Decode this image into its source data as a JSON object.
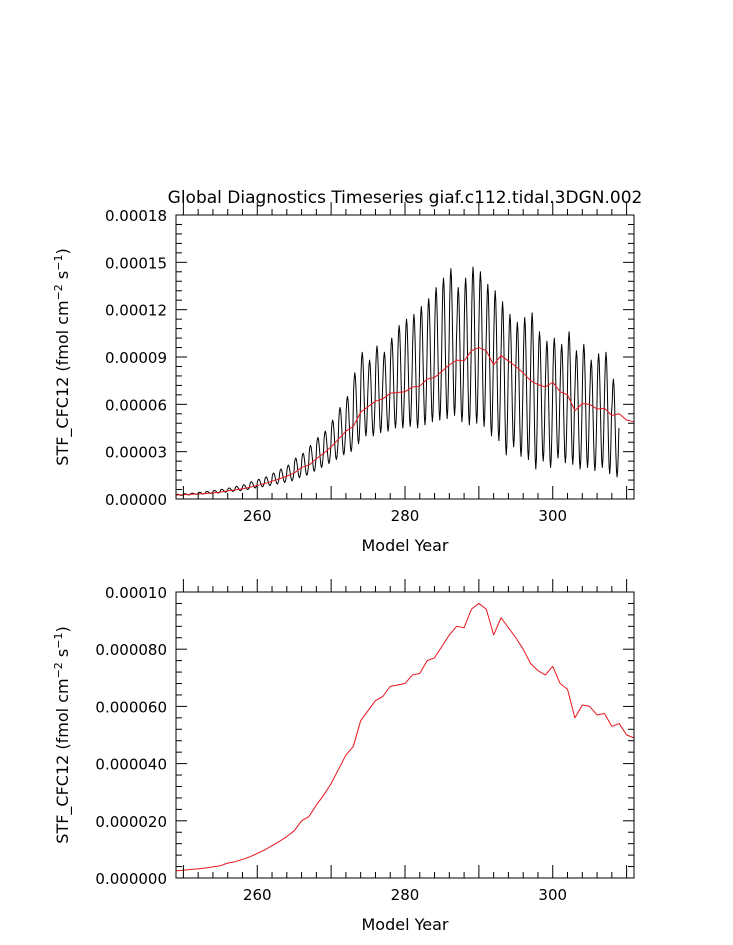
{
  "title": "Global Diagnostics Timeseries giaf.c112.tidal.3DGN.002",
  "colors": {
    "monthly": "#000000",
    "annual": "#e8141c",
    "axis": "#000000"
  },
  "chart_data": [
    {
      "type": "line",
      "xlabel": "Model Year",
      "ylabel_main": "STF_CFC12 (fmol cm",
      "ylabel_sup1": "−2",
      "ylabel_mid": " s",
      "ylabel_sup2": "−1",
      "ylabel_end": ")",
      "xlim": [
        249,
        311
      ],
      "ylim": [
        0,
        0.00018
      ],
      "xticks": [
        260,
        280,
        300
      ],
      "xtick_labels": [
        "260",
        "280",
        "300"
      ],
      "yticks": [
        0,
        3e-05,
        6e-05,
        9e-05,
        0.00012,
        0.00015,
        0.00018
      ],
      "ytick_labels": [
        "0.00000",
        "0.00003",
        "0.00006",
        "0.00009",
        "0.00012",
        "0.00015",
        "0.00018"
      ],
      "series": [
        {
          "name": "monthly",
          "color": "#000000",
          "seasonal_cycle": true,
          "mean": [
            2.6e-06,
            2.9e-06,
            3.3e-06,
            3.6e-06,
            4e-06,
            4.5e-06,
            5.2e-06,
            5.6e-06,
            6.3e-06,
            7e-06,
            8.5e-06,
            9.5e-06,
            1.07e-05,
            1.22e-05,
            1.36e-05,
            1.55e-05,
            1.85e-05,
            2.05e-05,
            2.4e-05,
            2.7e-05,
            3.1e-05,
            3.5e-05,
            4.1e-05,
            4.5e-05,
            5.4e-05,
            5.9e-05,
            6.1e-05,
            6.4e-05,
            6.7e-05,
            6.8e-05,
            7e-05,
            7.3e-05,
            7.5e-05,
            7.8e-05,
            8.2e-05,
            8.8e-05,
            9.3e-05,
            9.5e-05,
            9.2e-05,
            8.6e-05,
            9.1e-05,
            8.8e-05,
            8.4e-05,
            8e-05,
            7.6e-05,
            7.2e-05,
            7e-05,
            6.9e-05,
            7.3e-05,
            6.8e-05,
            6.5e-05,
            5.7e-05,
            6e-05,
            6e-05,
            5.7e-05,
            5.6e-05,
            5.3e-05,
            5.4e-05,
            5.1e-05,
            4.9e-05
          ],
          "peaks": [
            3e-06,
            3.3e-06,
            3.7e-06,
            4.2e-06,
            4.8e-06,
            5.4e-06,
            6.2e-06,
            7e-06,
            8e-06,
            9e-06,
            1.1e-05,
            1.25e-05,
            1.4e-05,
            1.65e-05,
            1.9e-05,
            2.15e-05,
            2.6e-05,
            2.9e-05,
            3.4e-05,
            3.9e-05,
            4.3e-05,
            5e-05,
            5.8e-05,
            6.5e-05,
            8e-05,
            9.3e-05,
            8.8e-05,
            9.7e-05,
            9.3e-05,
            0.000102,
            0.00011,
            0.000114,
            0.000117,
            0.000122,
            0.000127,
            0.000134,
            0.00014,
            0.000146,
            0.000134,
            0.00014,
            0.000147,
            0.000144,
            0.000136,
            0.000132,
            0.000125,
            0.000117,
            0.000112,
            0.000115,
            0.000118,
            0.000106,
            0.0001,
            0.000102,
            9.8e-05,
            0.000106,
            9.4e-05,
            9.8e-05,
            8.8e-05,
            9.2e-05,
            9.3e-05,
            7.6e-05
          ],
          "troughs": [
            2.3e-06,
            2.6e-06,
            3e-06,
            3.2e-06,
            3.5e-06,
            3.8e-06,
            4.3e-06,
            4.8e-06,
            5.3e-06,
            6e-06,
            7e-06,
            7.8e-06,
            8.5e-06,
            9.5e-06,
            1.05e-05,
            1.15e-05,
            1.35e-05,
            1.5e-05,
            1.75e-05,
            2e-05,
            2.25e-05,
            2.5e-05,
            2.8e-05,
            3e-05,
            3.5e-05,
            4e-05,
            4e-05,
            4.2e-05,
            4.3e-05,
            4.5e-05,
            4.5e-05,
            4.6e-05,
            4.5e-05,
            4.7e-05,
            4.9e-05,
            5e-05,
            5.1e-05,
            5.3e-05,
            4.9e-05,
            4.7e-05,
            4.8e-05,
            4.6e-05,
            4e-05,
            3.7e-05,
            2.8e-05,
            3.3e-05,
            2.7e-05,
            2.5e-05,
            1.9e-05,
            2.4e-05,
            2e-05,
            2.6e-05,
            2.3e-05,
            2.2e-05,
            1.9e-05,
            2e-05,
            1.8e-05,
            2e-05,
            1.6e-05,
            1.4e-05
          ]
        },
        {
          "name": "annual",
          "color": "#e8141c",
          "x": [
            249,
            250,
            251,
            252,
            253,
            254,
            255,
            256,
            257,
            258,
            259,
            260,
            261,
            262,
            263,
            264,
            265,
            266,
            267,
            268,
            269,
            270,
            271,
            272,
            273,
            274,
            275,
            276,
            277,
            278,
            279,
            280,
            281,
            282,
            283,
            284,
            285,
            286,
            287,
            288,
            289,
            290,
            291,
            292,
            293,
            294,
            295,
            296,
            297,
            298,
            299,
            300,
            301,
            302,
            303,
            304,
            305,
            306,
            307,
            308,
            309,
            310,
            311
          ],
          "values": [
            2.5e-06,
            2.7e-06,
            3e-06,
            3.2e-06,
            3.5e-06,
            3.9e-06,
            4.3e-06,
            5.2e-06,
            5.7e-06,
            6.5e-06,
            7.4e-06,
            8.6e-06,
            9.8e-06,
            1.13e-05,
            1.28e-05,
            1.45e-05,
            1.65e-05,
            2e-05,
            2.15e-05,
            2.55e-05,
            2.9e-05,
            3.3e-05,
            3.8e-05,
            4.3e-05,
            4.6e-05,
            5.5e-05,
            5.85e-05,
            6.2e-05,
            6.35e-05,
            6.7e-05,
            6.75e-05,
            6.8e-05,
            7.1e-05,
            7.15e-05,
            7.6e-05,
            7.7e-05,
            8.1e-05,
            8.5e-05,
            8.8e-05,
            8.75e-05,
            9.4e-05,
            9.6e-05,
            9.4e-05,
            8.5e-05,
            9.1e-05,
            8.75e-05,
            8.4e-05,
            8e-05,
            7.5e-05,
            7.25e-05,
            7.1e-05,
            7.4e-05,
            6.8e-05,
            6.6e-05,
            5.6e-05,
            6.05e-05,
            6e-05,
            5.7e-05,
            5.75e-05,
            5.3e-05,
            5.4e-05,
            5e-05,
            4.9e-05
          ]
        }
      ]
    },
    {
      "type": "line",
      "xlabel": "Model Year",
      "ylabel_main": "STF_CFC12 (fmol cm",
      "ylabel_sup1": "−2",
      "ylabel_mid": " s",
      "ylabel_sup2": "−1",
      "ylabel_end": ")",
      "xlim": [
        249,
        311
      ],
      "ylim": [
        0,
        0.0001
      ],
      "xticks": [
        260,
        280,
        300
      ],
      "xtick_labels": [
        "260",
        "280",
        "300"
      ],
      "yticks": [
        0,
        2e-05,
        4e-05,
        6e-05,
        8e-05,
        0.0001
      ],
      "ytick_labels": [
        "0.000000",
        "0.000020",
        "0.000040",
        "0.000060",
        "0.000080",
        "0.00010"
      ],
      "series": [
        {
          "name": "annual",
          "color": "#e8141c",
          "x": [
            249,
            250,
            251,
            252,
            253,
            254,
            255,
            256,
            257,
            258,
            259,
            260,
            261,
            262,
            263,
            264,
            265,
            266,
            267,
            268,
            269,
            270,
            271,
            272,
            273,
            274,
            275,
            276,
            277,
            278,
            279,
            280,
            281,
            282,
            283,
            284,
            285,
            286,
            287,
            288,
            289,
            290,
            291,
            292,
            293,
            294,
            295,
            296,
            297,
            298,
            299,
            300,
            301,
            302,
            303,
            304,
            305,
            306,
            307,
            308,
            309,
            310,
            311
          ],
          "values": [
            2.5e-06,
            2.7e-06,
            3e-06,
            3.2e-06,
            3.5e-06,
            3.9e-06,
            4.3e-06,
            5.2e-06,
            5.7e-06,
            6.5e-06,
            7.4e-06,
            8.6e-06,
            9.8e-06,
            1.13e-05,
            1.28e-05,
            1.45e-05,
            1.65e-05,
            2e-05,
            2.15e-05,
            2.55e-05,
            2.9e-05,
            3.3e-05,
            3.8e-05,
            4.3e-05,
            4.6e-05,
            5.5e-05,
            5.85e-05,
            6.2e-05,
            6.35e-05,
            6.7e-05,
            6.75e-05,
            6.8e-05,
            7.1e-05,
            7.15e-05,
            7.6e-05,
            7.7e-05,
            8.1e-05,
            8.5e-05,
            8.8e-05,
            8.75e-05,
            9.4e-05,
            9.6e-05,
            9.4e-05,
            8.5e-05,
            9.1e-05,
            8.75e-05,
            8.4e-05,
            8e-05,
            7.5e-05,
            7.25e-05,
            7.1e-05,
            7.4e-05,
            6.8e-05,
            6.6e-05,
            5.6e-05,
            6.05e-05,
            6e-05,
            5.7e-05,
            5.75e-05,
            5.3e-05,
            5.4e-05,
            5e-05,
            4.9e-05
          ]
        }
      ]
    }
  ]
}
